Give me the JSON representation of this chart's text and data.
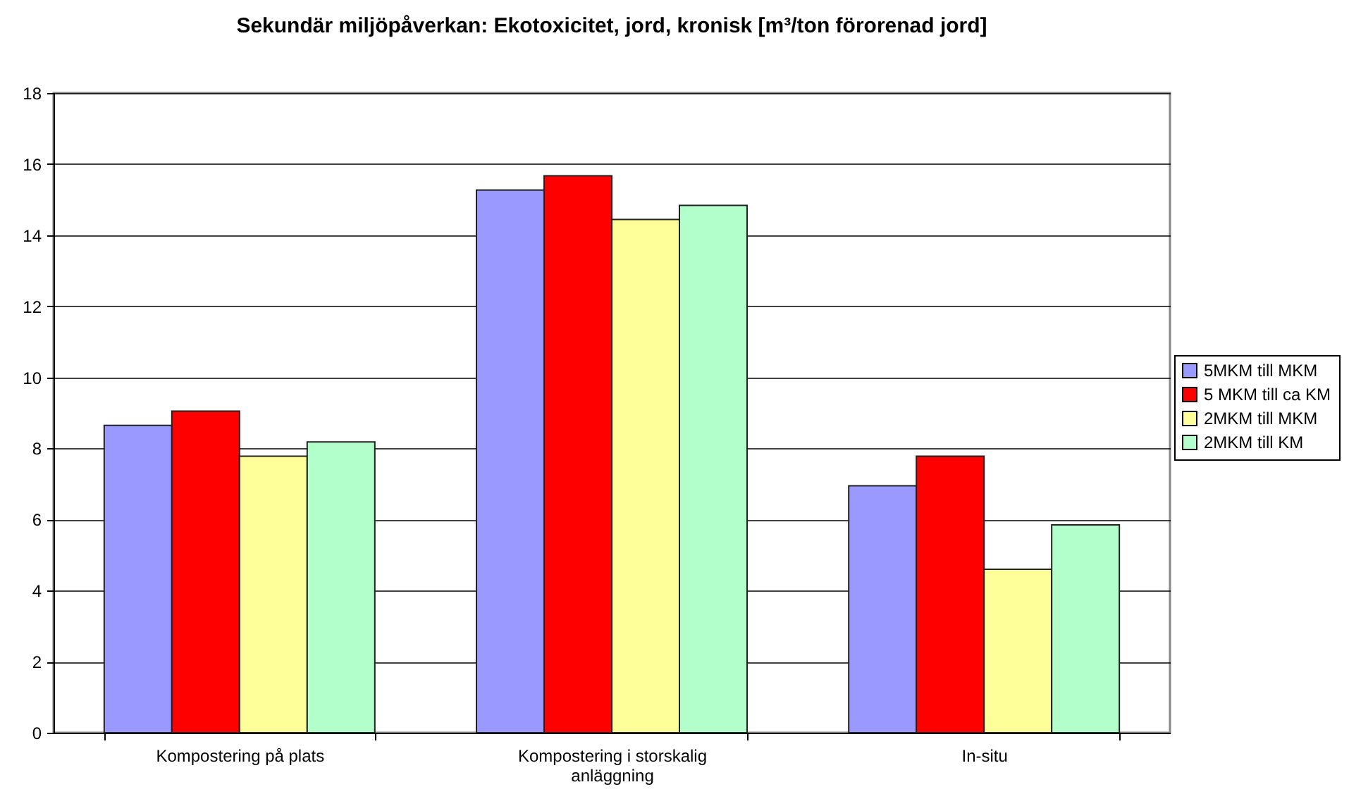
{
  "chart_data": {
    "type": "bar",
    "title": "Sekundär miljöpåverkan: Ekotoxicitet, jord, kronisk [m³/ton förorenad jord]",
    "categories": [
      "Kompostering på plats",
      "Kompostering i storskalig anläggning",
      "In-situ"
    ],
    "series": [
      {
        "name": "5MKM till MKM",
        "color": "#9999ff",
        "values": [
          8.65,
          15.27,
          6.95
        ]
      },
      {
        "name": "5 MKM till ca KM",
        "color": "#ff0000",
        "values": [
          9.05,
          15.67,
          7.78
        ]
      },
      {
        "name": "2MKM till MKM",
        "color": "#ffff99",
        "values": [
          7.78,
          14.44,
          4.6
        ]
      },
      {
        "name": "2MKM till KM",
        "color": "#b3ffcc",
        "values": [
          8.18,
          14.84,
          5.85
        ]
      }
    ],
    "ylim": [
      0,
      18
    ],
    "yticks": [
      0,
      2,
      4,
      6,
      8,
      10,
      12,
      14,
      16,
      18
    ],
    "grid": "y",
    "legend": "right"
  }
}
